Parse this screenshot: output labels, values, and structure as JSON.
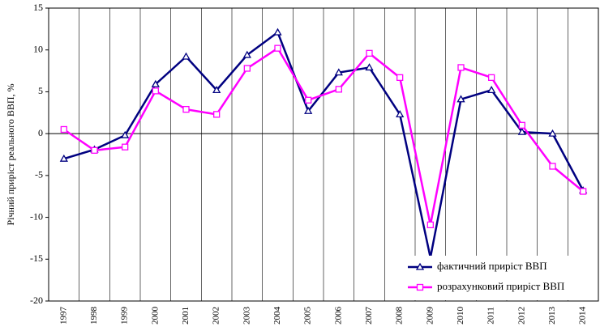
{
  "chart_data": {
    "type": "line",
    "y_label": "Річний приріст реального ВВП, %",
    "categories": [
      "1997",
      "1998",
      "1999",
      "2000",
      "2001",
      "2002",
      "2003",
      "2004",
      "2005",
      "2006",
      "2007",
      "2008",
      "2009",
      "2010",
      "2011",
      "2012",
      "2013",
      "2014"
    ],
    "series": [
      {
        "name": "фактичний приріст ВВП",
        "color": "#000080",
        "marker": "triangle",
        "values": [
          -3.0,
          -1.9,
          -0.2,
          5.9,
          9.2,
          5.2,
          9.4,
          12.1,
          2.7,
          7.3,
          7.9,
          2.3,
          -14.8,
          4.1,
          5.2,
          0.2,
          0.0,
          -6.8
        ]
      },
      {
        "name": "розрахунковий приріст ВВП",
        "color": "#ff00ff",
        "marker": "square",
        "values": [
          0.5,
          -2.0,
          -1.6,
          5.1,
          2.9,
          2.3,
          7.8,
          10.2,
          4.0,
          5.3,
          9.6,
          6.7,
          -10.9,
          7.9,
          6.7,
          1.0,
          -3.9,
          -6.9
        ]
      }
    ],
    "ylim": [
      -20,
      15
    ],
    "yticks": [
      -20,
      -15,
      -10,
      -5,
      0,
      5,
      10,
      15
    ],
    "grid": "category",
    "legend": "lower right"
  }
}
